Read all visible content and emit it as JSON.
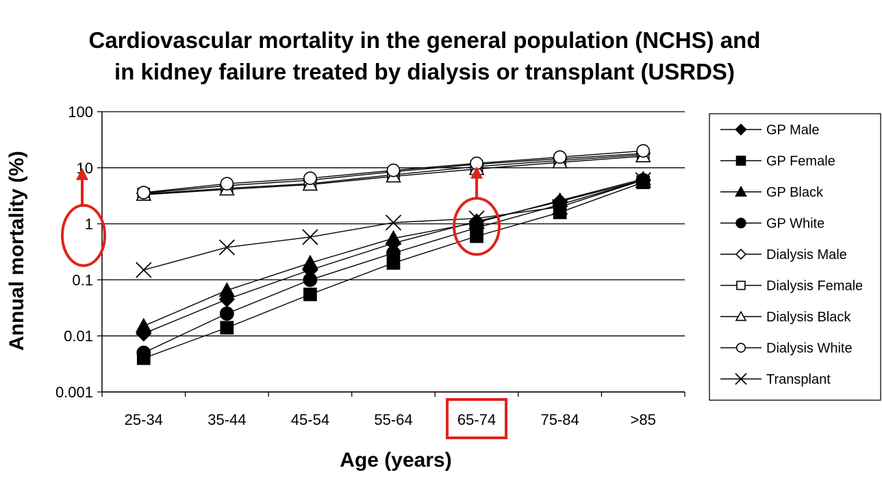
{
  "chart_data": {
    "type": "line",
    "title_lines": [
      "Cardiovascular mortality in the general population (NCHS) and",
      "in kidney failure treated by dialysis or transplant (USRDS)"
    ],
    "xlabel": "Age (years)",
    "ylabel": "Annual mortality (%)",
    "yscale": "log",
    "ylim": [
      0.001,
      100
    ],
    "y_tick_labels": [
      "100",
      "10",
      "1",
      "0.1",
      "0.01",
      "0.001"
    ],
    "y_tick_values": [
      100,
      10,
      1,
      0.1,
      0.01,
      0.001
    ],
    "grid": true,
    "legend_position": "right",
    "categories": [
      "25-34",
      "35-44",
      "45-54",
      "55-64",
      "65-74",
      "75-84",
      ">85"
    ],
    "series": [
      {
        "name": "GP Male",
        "marker": "filled-diamond",
        "values": [
          0.011,
          0.045,
          0.15,
          0.45,
          1.1,
          2.5,
          6.0
        ]
      },
      {
        "name": "GP Female",
        "marker": "filled-square",
        "values": [
          0.004,
          0.014,
          0.055,
          0.2,
          0.6,
          1.6,
          5.5
        ]
      },
      {
        "name": "GP Black",
        "marker": "filled-triangle",
        "values": [
          0.015,
          0.065,
          0.2,
          0.55,
          1.05,
          2.6,
          6.3
        ]
      },
      {
        "name": "GP White",
        "marker": "filled-circle",
        "values": [
          0.005,
          0.025,
          0.1,
          0.3,
          0.85,
          2.2,
          6.0
        ]
      },
      {
        "name": "Dialysis Male",
        "marker": "open-diamond",
        "values": [
          3.5,
          4.8,
          6.0,
          8.5,
          11.5,
          14.5,
          18.0
        ]
      },
      {
        "name": "Dialysis Female",
        "marker": "open-square",
        "values": [
          3.4,
          4.3,
          5.2,
          7.5,
          10.5,
          13.5,
          17.0
        ]
      },
      {
        "name": "Dialysis Black",
        "marker": "open-triangle",
        "values": [
          3.3,
          4.1,
          5.0,
          7.0,
          9.5,
          12.5,
          16.0
        ]
      },
      {
        "name": "Dialysis White",
        "marker": "open-circle",
        "values": [
          3.6,
          5.2,
          6.5,
          9.0,
          12.0,
          15.5,
          20.0
        ]
      },
      {
        "name": "Transplant",
        "marker": "x",
        "values": [
          0.15,
          0.38,
          0.58,
          1.05,
          1.25,
          2.0,
          6.0
        ]
      }
    ],
    "annotation_color": "#e0231c",
    "highlighted_category": "65-74",
    "highlighted_y_tick": "1"
  }
}
